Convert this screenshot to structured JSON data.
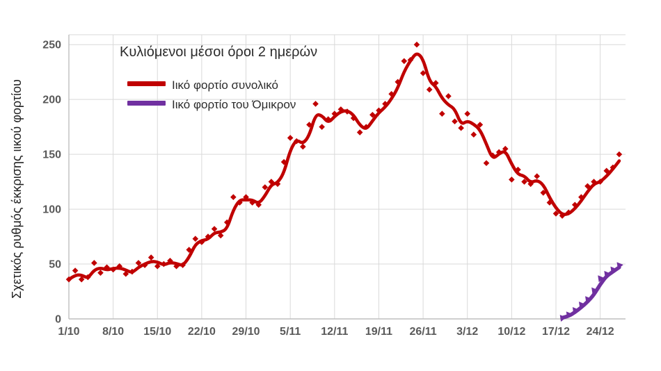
{
  "chart_data": {
    "type": "line",
    "title": "Κυλιόμενοι μέσοι όροι 2 ημερών",
    "ylabel": "Σχετικός ρυθμός έκκρισης ιικού φορτίου",
    "xlabel": "",
    "grid": "on",
    "legend_position": "top-left-inside",
    "line_definition": "2-day rolling average of daily values",
    "ylim": [
      0,
      259
    ],
    "xlim_days": [
      0,
      88
    ],
    "y_ticks": [
      0,
      50,
      100,
      150,
      200,
      250
    ],
    "x_tick_days": [
      0,
      7,
      14,
      21,
      28,
      35,
      42,
      49,
      56,
      63,
      70,
      77,
      84
    ],
    "x_tick_labels": [
      "1/10",
      "8/10",
      "15/10",
      "22/10",
      "29/10",
      "5/11",
      "12/11",
      "19/11",
      "26/11",
      "3/12",
      "10/12",
      "17/12",
      "24/12"
    ],
    "series": [
      {
        "id": "total",
        "name": "Ιικό φορτίο συνολικό",
        "color": "#C00000",
        "marker": "diamond",
        "start_day": 0,
        "daily_values": [
          36,
          44,
          36,
          38,
          51,
          42,
          47,
          45,
          48,
          41,
          43,
          51,
          49,
          56,
          48,
          50,
          53,
          48,
          49,
          63,
          73,
          70,
          75,
          82,
          76,
          88,
          111,
          106,
          111,
          106,
          104,
          120,
          125,
          123,
          143,
          165,
          162,
          157,
          177,
          196,
          175,
          182,
          187,
          191,
          189,
          183,
          170,
          175,
          186,
          190,
          196,
          205,
          216,
          235,
          236,
          250,
          224,
          209,
          215,
          187,
          203,
          180,
          174,
          187,
          168,
          177,
          142,
          149,
          152,
          155,
          127,
          136,
          125,
          123,
          130,
          115,
          106,
          96,
          94,
          97,
          104,
          111,
          121,
          125,
          125,
          135,
          138,
          150
        ]
      },
      {
        "id": "omicron",
        "name": "Ιικό φορτίο του Όμικρον",
        "color": "#7030A0",
        "marker": "triangle",
        "start_day": 78,
        "daily_values": [
          1,
          4,
          8,
          13,
          18,
          26,
          37,
          41,
          45,
          49
        ]
      }
    ]
  },
  "style": {
    "gridline_color": "#D9D9D9",
    "axis_line_color": "#BFBFBF",
    "tick_label_color": "#595959"
  }
}
